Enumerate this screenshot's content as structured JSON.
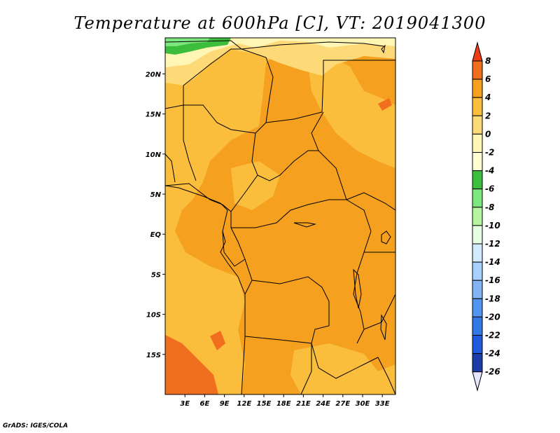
{
  "title": "Temperature at 600hPa [C], VT: 2019041300",
  "credit": "GrADS: IGES/COLA",
  "map": {
    "lon_range": [
      0,
      35
    ],
    "lat_range": [
      -20,
      24.5
    ],
    "lon_ticks": [
      {
        "value": 3,
        "label": "3E"
      },
      {
        "value": 6,
        "label": "6E"
      },
      {
        "value": 9,
        "label": "9E"
      },
      {
        "value": 12,
        "label": "12E"
      },
      {
        "value": 15,
        "label": "15E"
      },
      {
        "value": 18,
        "label": "18E"
      },
      {
        "value": 21,
        "label": "21E"
      },
      {
        "value": 24,
        "label": "24E"
      },
      {
        "value": 27,
        "label": "27E"
      },
      {
        "value": 30,
        "label": "30E"
      },
      {
        "value": 33,
        "label": "33E"
      }
    ],
    "lat_ticks": [
      {
        "value": 20,
        "label": "20N"
      },
      {
        "value": 15,
        "label": "15N"
      },
      {
        "value": 10,
        "label": "10N"
      },
      {
        "value": 5,
        "label": "5N"
      },
      {
        "value": 0,
        "label": "EQ"
      },
      {
        "value": -5,
        "label": "5S"
      },
      {
        "value": -10,
        "label": "10S"
      },
      {
        "value": -15,
        "label": "15S"
      }
    ]
  },
  "colorbar": {
    "labels": [
      "8",
      "6",
      "4",
      "2",
      "0",
      "-2",
      "-4",
      "-6",
      "-8",
      "-10",
      "-12",
      "-14",
      "-16",
      "-18",
      "-20",
      "-22",
      "-24",
      "-26"
    ],
    "colors": [
      "#f03c14",
      "#f06e1e",
      "#f5a01e",
      "#fabe3c",
      "#fed978",
      "#fff5b4",
      "#fffed2",
      "#3cbe3c",
      "#7ee67e",
      "#b4f5a0",
      "#e4ffe4",
      "#d2eaff",
      "#a6d0ff",
      "#82b4f5",
      "#5096f0",
      "#3278e6",
      "#1e5adc",
      "#1a3ca8",
      "#0a1e78",
      "#e6e6fa"
    ]
  }
}
